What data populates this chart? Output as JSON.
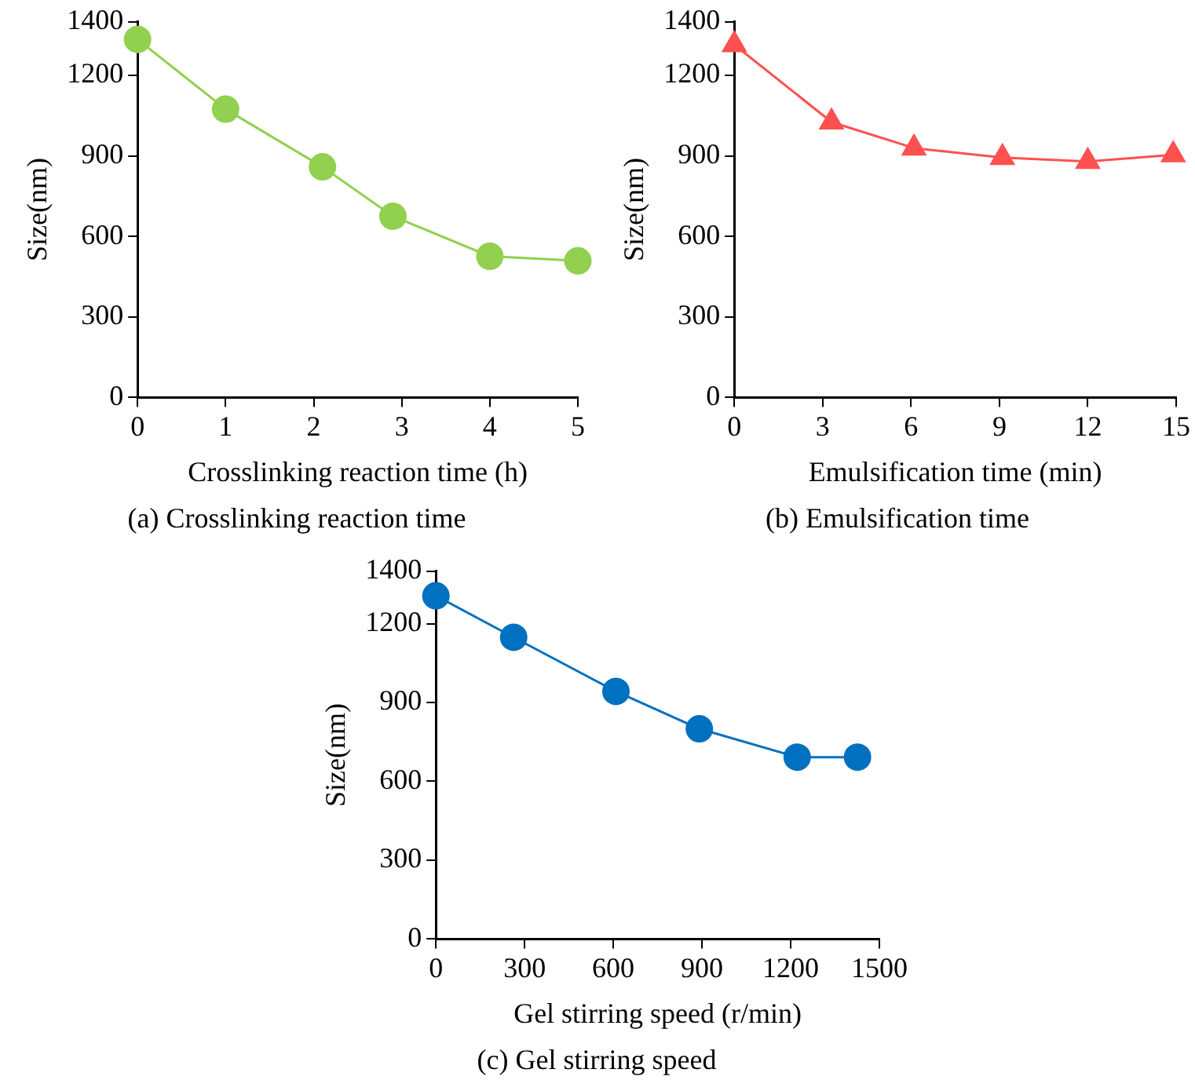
{
  "chart_data": [
    {
      "type": "line",
      "title": "(a) Crosslinking reaction time",
      "xlabel": "Crosslinking reaction time (h)",
      "ylabel": "Size(nm)",
      "x": [
        0,
        1,
        2.1,
        2.9,
        4,
        5
      ],
      "series": [
        {
          "color": "#92d050",
          "values": [
            1334,
            1074,
            859,
            675,
            526,
            509
          ]
        }
      ],
      "xlim": [
        0,
        5
      ],
      "xticks": [
        0,
        1,
        2,
        3,
        4,
        5
      ],
      "ylim": [
        0,
        1400
      ],
      "yticks": [
        0,
        300,
        600,
        900,
        1200,
        1400
      ],
      "grid": false,
      "legend": false,
      "marker": "circle",
      "line_style": "solid"
    },
    {
      "type": "line",
      "title": "(b) Emulsification time",
      "xlabel": "Emulsification time (min)",
      "ylabel": "Size(nm)",
      "x": [
        0,
        3.3,
        6.1,
        9.1,
        12,
        14.9
      ],
      "series": [
        {
          "color": "#ff5050",
          "values": [
            1314,
            1026,
            929,
            894,
            879,
            904
          ]
        }
      ],
      "xlim": [
        0,
        15
      ],
      "xticks": [
        0,
        3,
        6,
        9,
        12,
        15
      ],
      "ylim": [
        0,
        1400
      ],
      "yticks": [
        0,
        300,
        600,
        900,
        1200,
        1400
      ],
      "grid": false,
      "legend": false,
      "marker": "triangle",
      "line_style": "solid"
    },
    {
      "type": "line",
      "title": "(c) Gel stirring speed",
      "xlabel": "Gel stirring speed (r/min)",
      "ylabel": "Size(nm)",
      "x": [
        0,
        263,
        609,
        891,
        1222,
        1426
      ],
      "series": [
        {
          "color": "#0070c0",
          "values": [
            1306,
            1148,
            942,
            800,
            692,
            692
          ]
        }
      ],
      "xlim": [
        0,
        1500
      ],
      "xticks": [
        0,
        300,
        600,
        900,
        1200,
        1500
      ],
      "ylim": [
        0,
        1400
      ],
      "yticks": [
        0,
        300,
        600,
        900,
        1200,
        1400
      ],
      "grid": false,
      "legend": false,
      "marker": "circle",
      "line_style": "solid"
    }
  ]
}
